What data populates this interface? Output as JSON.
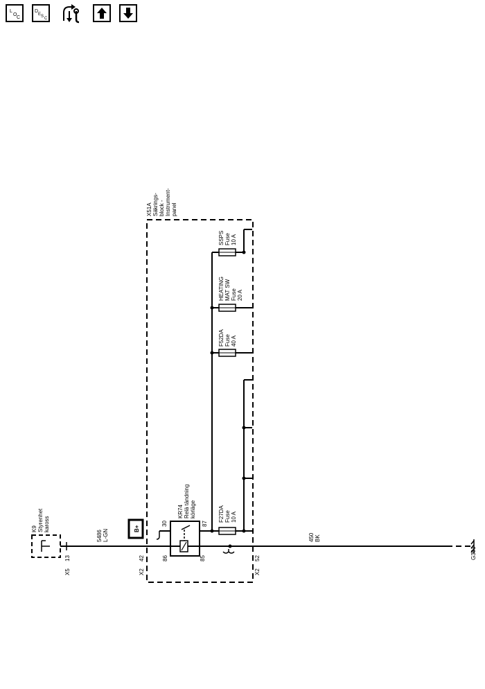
{
  "toolbar": {
    "items": [
      {
        "name": "location-view",
        "icon": "location-icon",
        "letters": [
          "L",
          "O",
          "C"
        ]
      },
      {
        "name": "description-view",
        "icon": "description-icon",
        "letters": [
          "D",
          "E",
          "S",
          "C"
        ]
      },
      {
        "name": "repair-flow",
        "icon": "wrench-cycle-icon"
      },
      {
        "name": "page-up",
        "icon": "arrow-up-icon"
      },
      {
        "name": "page-down",
        "icon": "arrow-down-icon"
      }
    ]
  },
  "diagram": {
    "junction_block": [
      "X51A",
      "Säkrings-",
      "block -",
      "Instrument-",
      "panel"
    ],
    "relay": [
      "KR74",
      "Relä tändning",
      "körläge"
    ],
    "control_unit": [
      "K9",
      "Styrenhet",
      "kaross"
    ],
    "fuses": [
      {
        "id": "f27da",
        "lines": [
          "F27DA",
          "Fuse",
          "10 A"
        ]
      },
      {
        "id": "f52da",
        "lines": [
          "F52DA",
          "Fuse",
          "40 A"
        ]
      },
      {
        "id": "heating",
        "lines": [
          "HEATING",
          "MAT SW",
          "Fuse",
          "20 A"
        ]
      },
      {
        "id": "ssps",
        "lines": [
          "SSPS",
          "Fuse",
          "10 A"
        ]
      }
    ],
    "battery_label": "B+",
    "pins": {
      "relay_30": "30",
      "relay_86": "86",
      "relay_85": "85",
      "relay_87": "87",
      "x2_42": "42",
      "x2_52": "52",
      "x5_13": "13"
    },
    "connectors": {
      "x2_left": "X2",
      "x2_right": "X2",
      "x5": "X5"
    },
    "wires": {
      "left": [
        "5486",
        "L-GN"
      ],
      "right": [
        "450",
        "BK"
      ]
    },
    "ground": "G301"
  }
}
